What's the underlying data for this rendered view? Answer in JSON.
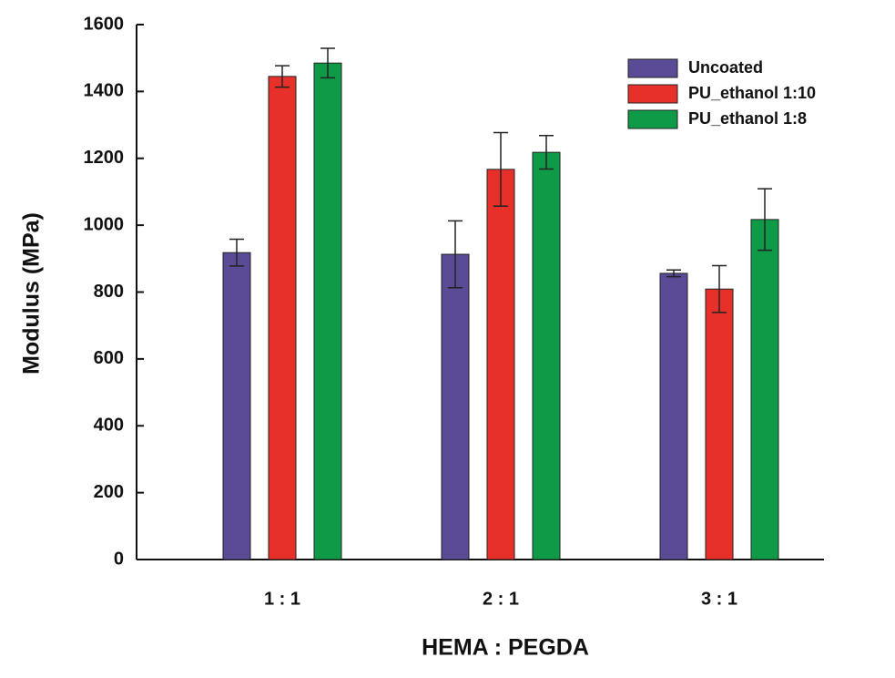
{
  "chart_data": {
    "type": "bar",
    "x_label": "HEMA : PEGDA",
    "y_label": "Modulus (MPa)",
    "categories": [
      "1 : 1",
      "2 : 1",
      "3 : 1"
    ],
    "series": [
      {
        "name": "Uncoated",
        "color": "#5b4a96",
        "values": [
          918,
          913,
          856
        ],
        "errors": [
          40,
          100,
          10
        ]
      },
      {
        "name": "PU_ethanol 1:10",
        "color": "#e8302a",
        "values": [
          1445,
          1167,
          809
        ],
        "errors": [
          32,
          110,
          70
        ]
      },
      {
        "name": "PU_ethanol 1:8",
        "color": "#0f9a48",
        "values": [
          1485,
          1218,
          1017
        ],
        "errors": [
          44,
          50,
          92
        ]
      }
    ],
    "ylim": [
      0,
      1600
    ],
    "yticks": [
      0,
      200,
      400,
      600,
      800,
      1000,
      1200,
      1400,
      1600
    ],
    "legend": "upper right"
  }
}
